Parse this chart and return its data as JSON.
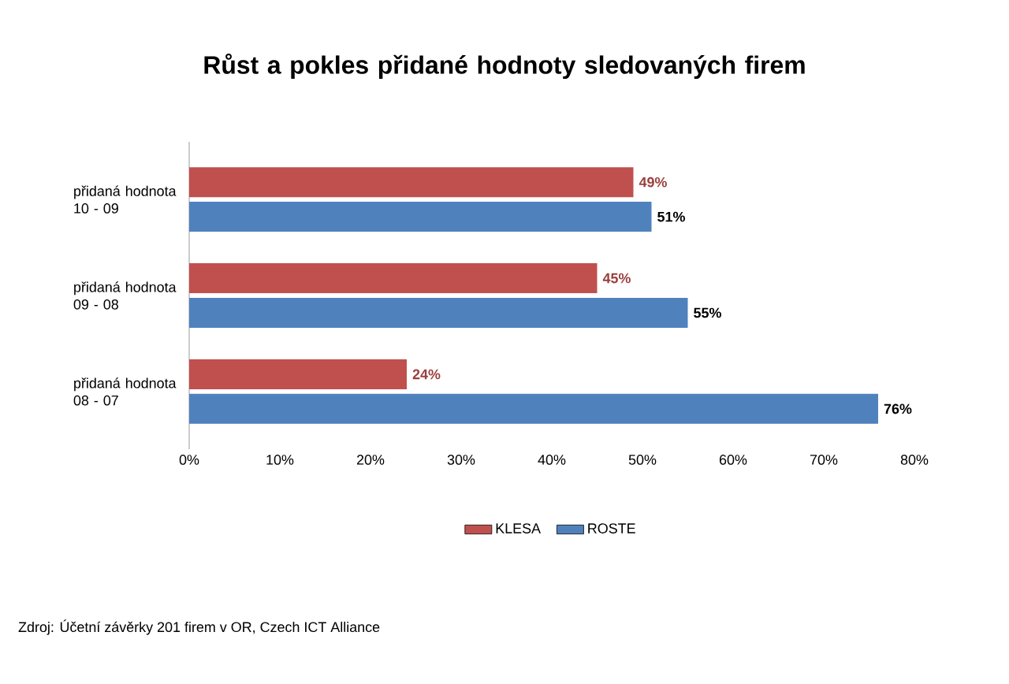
{
  "chart_data": {
    "type": "bar",
    "orientation": "horizontal",
    "title": "Růst a pokles přidané hodnoty sledovaných firem",
    "categories": [
      "přidaná hodnota 10 - 09",
      "přidaná hodnota 09 - 08",
      "přidaná hodnota 08 - 07"
    ],
    "series": [
      {
        "name": "KLESA",
        "color": "#c0504d",
        "values": [
          49,
          45,
          24
        ],
        "value_labels": [
          "49%",
          "45%",
          "24%"
        ]
      },
      {
        "name": "ROSTE",
        "color": "#4f81bd",
        "values": [
          51,
          55,
          76
        ],
        "value_labels": [
          "51%",
          "55%",
          "76%"
        ]
      }
    ],
    "xlim": [
      0,
      80
    ],
    "xticks": [
      {
        "value": 0,
        "label": "0%"
      },
      {
        "value": 10,
        "label": "10%"
      },
      {
        "value": 20,
        "label": "20%"
      },
      {
        "value": 30,
        "label": "30%"
      },
      {
        "value": 40,
        "label": "40%"
      },
      {
        "value": 50,
        "label": "50%"
      },
      {
        "value": 60,
        "label": "60%"
      },
      {
        "value": 70,
        "label": "70%"
      },
      {
        "value": 80,
        "label": "80%"
      }
    ],
    "grid": false,
    "legend": "bottom",
    "annotations": [
      "Zdroj: Účetní závěrky 201 firem v OR, Czech ICT Alliance"
    ]
  }
}
